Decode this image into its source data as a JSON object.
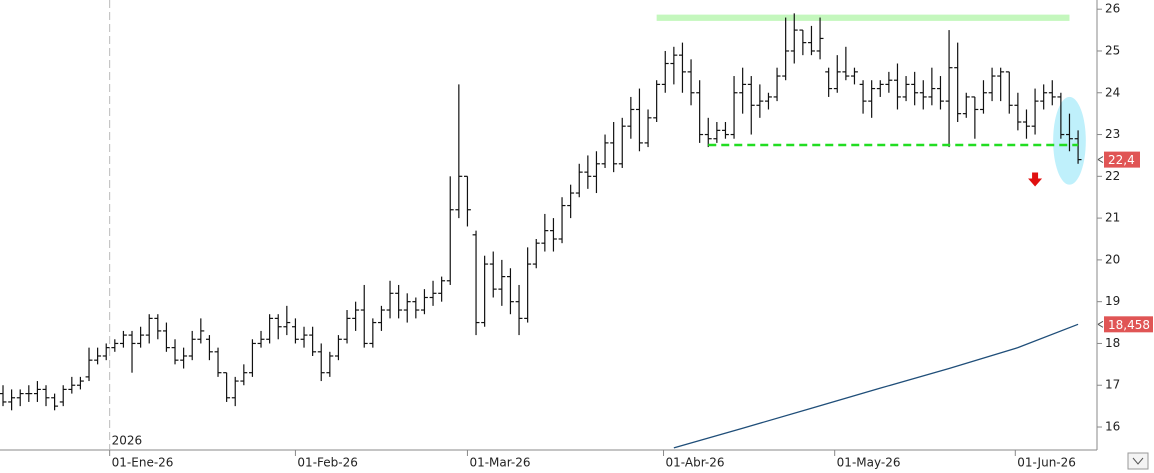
{
  "chart_data": {
    "type": "ohlc",
    "color": "#111111",
    "ohlc": [
      [
        16.8,
        17.0,
        16.5,
        16.6
      ],
      [
        16.6,
        16.9,
        16.4,
        16.7
      ],
      [
        16.7,
        16.9,
        16.5,
        16.8
      ],
      [
        16.8,
        17.0,
        16.6,
        16.8
      ],
      [
        16.8,
        17.1,
        16.6,
        16.9
      ],
      [
        16.9,
        17.0,
        16.5,
        16.7
      ],
      [
        16.7,
        16.8,
        16.4,
        16.5
      ],
      [
        16.6,
        17.0,
        16.5,
        16.9
      ],
      [
        16.9,
        17.2,
        16.8,
        17.0
      ],
      [
        17.0,
        17.2,
        16.9,
        17.1
      ],
      [
        17.2,
        17.9,
        17.1,
        17.6
      ],
      [
        17.6,
        17.9,
        17.5,
        17.7
      ],
      [
        17.7,
        18.0,
        17.6,
        17.9
      ],
      [
        17.9,
        18.1,
        17.8,
        18.0
      ],
      [
        18.0,
        18.3,
        17.9,
        18.2
      ],
      [
        18.2,
        18.3,
        17.3,
        18.0
      ],
      [
        18.0,
        18.4,
        17.9,
        18.2
      ],
      [
        18.2,
        18.7,
        18.0,
        18.6
      ],
      [
        18.6,
        18.7,
        18.1,
        18.3
      ],
      [
        18.3,
        18.5,
        17.8,
        17.9
      ],
      [
        17.9,
        18.1,
        17.5,
        17.6
      ],
      [
        17.6,
        17.9,
        17.4,
        17.7
      ],
      [
        17.7,
        18.3,
        17.6,
        18.1
      ],
      [
        18.1,
        18.6,
        18.0,
        18.3
      ],
      [
        18.1,
        18.2,
        17.6,
        17.8
      ],
      [
        17.8,
        17.9,
        17.2,
        17.3
      ],
      [
        17.3,
        17.3,
        16.6,
        16.7
      ],
      [
        16.7,
        17.2,
        16.5,
        17.1
      ],
      [
        17.1,
        17.5,
        17.0,
        17.3
      ],
      [
        17.3,
        18.1,
        17.2,
        18.0
      ],
      [
        18.0,
        18.3,
        17.9,
        18.1
      ],
      [
        18.1,
        18.7,
        18.0,
        18.6
      ],
      [
        18.6,
        18.7,
        18.1,
        18.4
      ],
      [
        18.4,
        18.9,
        18.2,
        18.5
      ],
      [
        18.4,
        18.6,
        18.0,
        18.1
      ],
      [
        18.1,
        18.4,
        17.9,
        18.2
      ],
      [
        18.2,
        18.4,
        17.7,
        17.8
      ],
      [
        17.8,
        18.0,
        17.1,
        17.3
      ],
      [
        17.3,
        17.8,
        17.2,
        17.7
      ],
      [
        17.7,
        18.2,
        17.6,
        18.1
      ],
      [
        18.1,
        18.8,
        18.0,
        18.6
      ],
      [
        18.6,
        19.0,
        18.3,
        18.8
      ],
      [
        18.8,
        19.4,
        17.9,
        18.0
      ],
      [
        18.0,
        18.6,
        17.9,
        18.5
      ],
      [
        18.5,
        18.9,
        18.3,
        18.8
      ],
      [
        18.8,
        19.5,
        18.6,
        19.2
      ],
      [
        19.2,
        19.4,
        18.6,
        18.8
      ],
      [
        18.8,
        19.2,
        18.5,
        19.0
      ],
      [
        19.0,
        19.1,
        18.6,
        18.8
      ],
      [
        18.8,
        19.3,
        18.7,
        19.1
      ],
      [
        19.1,
        19.5,
        18.9,
        19.2
      ],
      [
        19.2,
        19.6,
        19.0,
        19.5
      ],
      [
        19.5,
        22.0,
        19.4,
        21.2
      ],
      [
        21.2,
        24.2,
        21.0,
        22.0
      ],
      [
        22.0,
        22.0,
        20.8,
        21.2
      ],
      [
        20.6,
        20.7,
        18.2,
        18.5
      ],
      [
        18.5,
        20.1,
        18.4,
        19.9
      ],
      [
        19.9,
        20.2,
        19.1,
        19.3
      ],
      [
        19.3,
        20.0,
        18.9,
        19.6
      ],
      [
        19.6,
        19.8,
        18.7,
        19.0
      ],
      [
        19.0,
        19.4,
        18.2,
        18.6
      ],
      [
        18.6,
        20.3,
        18.5,
        19.9
      ],
      [
        19.9,
        20.5,
        19.8,
        20.4
      ],
      [
        20.4,
        21.1,
        20.2,
        20.7
      ],
      [
        20.7,
        21.0,
        20.2,
        20.5
      ],
      [
        20.5,
        21.5,
        20.4,
        21.3
      ],
      [
        21.3,
        21.8,
        21.0,
        21.6
      ],
      [
        21.6,
        22.3,
        21.5,
        22.1
      ],
      [
        22.1,
        22.5,
        21.7,
        22.0
      ],
      [
        22.0,
        22.6,
        21.6,
        22.3
      ],
      [
        22.3,
        23.0,
        22.2,
        22.8
      ],
      [
        22.8,
        23.3,
        22.1,
        22.3
      ],
      [
        22.3,
        23.4,
        22.2,
        23.2
      ],
      [
        23.2,
        23.9,
        22.9,
        23.6
      ],
      [
        23.6,
        24.1,
        22.6,
        22.8
      ],
      [
        22.8,
        23.6,
        22.7,
        23.4
      ],
      [
        23.4,
        24.3,
        23.3,
        24.2
      ],
      [
        24.2,
        25.0,
        24.0,
        24.7
      ],
      [
        24.7,
        25.1,
        24.2,
        24.9
      ],
      [
        24.9,
        25.2,
        24.0,
        24.5
      ],
      [
        24.5,
        24.8,
        23.7,
        24.0
      ],
      [
        24.0,
        24.3,
        22.8,
        23.0
      ],
      [
        23.0,
        23.4,
        22.7,
        22.9
      ],
      [
        22.9,
        23.3,
        22.8,
        23.1
      ],
      [
        23.1,
        23.3,
        22.9,
        23.0
      ],
      [
        23.0,
        24.4,
        22.9,
        24.0
      ],
      [
        24.0,
        24.6,
        23.5,
        24.2
      ],
      [
        24.2,
        24.4,
        23.0,
        23.7
      ],
      [
        23.7,
        24.2,
        23.4,
        23.8
      ],
      [
        23.8,
        24.0,
        23.6,
        23.9
      ],
      [
        23.9,
        24.6,
        23.8,
        24.4
      ],
      [
        24.4,
        25.8,
        24.3,
        25.0
      ],
      [
        25.0,
        25.9,
        24.7,
        25.5
      ],
      [
        25.5,
        25.5,
        24.9,
        25.2
      ],
      [
        25.2,
        25.6,
        24.9,
        25.0
      ],
      [
        25.0,
        25.8,
        24.8,
        25.3
      ],
      [
        24.5,
        24.6,
        23.9,
        24.1
      ],
      [
        24.1,
        24.9,
        24.0,
        24.5
      ],
      [
        24.5,
        25.1,
        24.3,
        24.4
      ],
      [
        24.4,
        24.6,
        24.2,
        24.5
      ],
      [
        24.2,
        24.3,
        23.5,
        23.8
      ],
      [
        23.8,
        24.3,
        23.4,
        24.1
      ],
      [
        24.1,
        24.3,
        23.9,
        24.2
      ],
      [
        24.2,
        24.5,
        24.0,
        24.3
      ],
      [
        24.3,
        24.7,
        23.6,
        23.9
      ],
      [
        23.9,
        24.4,
        23.8,
        24.2
      ],
      [
        24.2,
        24.5,
        23.7,
        24.0
      ],
      [
        24.0,
        24.3,
        23.6,
        23.9
      ],
      [
        23.9,
        24.6,
        23.7,
        24.1
      ],
      [
        24.1,
        24.4,
        23.6,
        23.8
      ],
      [
        23.8,
        25.5,
        22.7,
        24.6
      ],
      [
        24.6,
        25.2,
        23.3,
        23.5
      ],
      [
        23.5,
        24.0,
        23.4,
        23.9
      ],
      [
        23.9,
        23.9,
        22.9,
        23.6
      ],
      [
        23.6,
        24.3,
        23.5,
        24.0
      ],
      [
        24.0,
        24.6,
        23.8,
        24.4
      ],
      [
        24.4,
        24.6,
        23.8,
        24.5
      ],
      [
        24.5,
        24.5,
        23.5,
        23.7
      ],
      [
        23.7,
        24.0,
        23.1,
        23.3
      ],
      [
        23.3,
        23.6,
        22.9,
        23.2
      ],
      [
        23.2,
        24.1,
        23.0,
        23.8
      ],
      [
        23.8,
        24.2,
        23.6,
        24.0
      ],
      [
        24.0,
        24.3,
        23.7,
        23.9
      ],
      [
        23.9,
        24.0,
        22.9,
        23.0
      ],
      [
        23.0,
        23.5,
        22.6,
        22.9
      ],
      [
        22.9,
        23.1,
        22.3,
        22.4
      ]
    ],
    "moving_average": {
      "color": "#1f4e79",
      "x": [
        78,
        86,
        94,
        102,
        110,
        118,
        125
      ],
      "values": [
        15.5,
        15.97,
        16.45,
        16.93,
        17.4,
        17.9,
        18.458
      ]
    },
    "xlim": [
      -0.35,
      127.2
    ],
    "ylim": [
      15.45,
      26.22
    ],
    "yticks": [
      16,
      17,
      18,
      19,
      20,
      21,
      22,
      23,
      24,
      25,
      26
    ],
    "xticks": [
      {
        "value": 12.4,
        "label": "01-Ene-26"
      },
      {
        "value": 34,
        "label": "01-Feb-26"
      },
      {
        "value": 54,
        "label": "01-Mar-26"
      },
      {
        "value": 76.8,
        "label": "01-Abr-26"
      },
      {
        "value": 96.7,
        "label": "01-May-26"
      },
      {
        "value": 117.7,
        "label": "01-Jun-26"
      }
    ],
    "year_marker": {
      "value": 12.4,
      "label": "2026"
    },
    "price_labels": [
      {
        "value": 22.4,
        "label": "22,4"
      },
      {
        "value": 18.458,
        "label": "18,458"
      }
    ],
    "price_label_color": "#e05555",
    "resistance_band": {
      "x": [
        76,
        124
      ],
      "y": [
        25.72,
        25.87
      ],
      "color": "#c4f7bd"
    },
    "support_line": {
      "x": [
        82,
        125
      ],
      "y": 22.75,
      "color": "#22dd22"
    },
    "down_arrow": {
      "x": 120,
      "y": 21.9,
      "color": "#e01010"
    },
    "highlight": {
      "x": 124,
      "y": 22.85,
      "rx": 1.9,
      "ry": 1.05,
      "color": "#bff0fb"
    }
  }
}
